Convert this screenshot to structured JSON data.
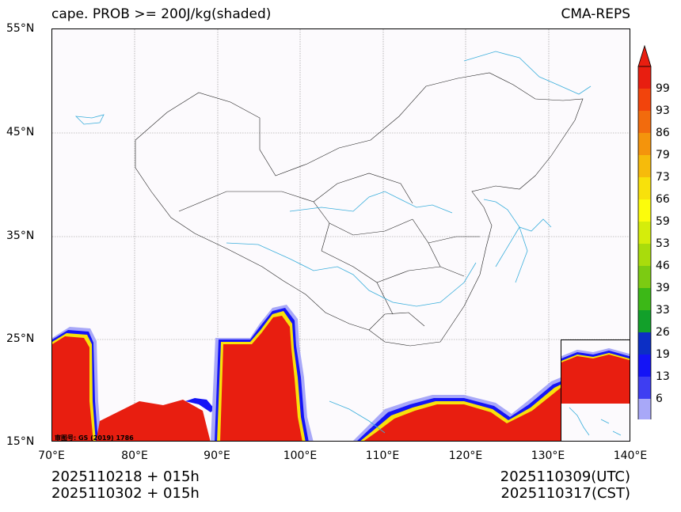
{
  "title_left": "cape. PROB >= 200J/kg(shaded)",
  "title_right": "CMA-REPS",
  "lat_labels": [
    "55°N",
    "45°N",
    "35°N",
    "25°N",
    "15°N"
  ],
  "lon_labels": [
    "70°E",
    "80°E",
    "90°E",
    "100°E",
    "110°E",
    "120°E",
    "130°E",
    "140°E"
  ],
  "colorbar": {
    "labels": [
      "99",
      "93",
      "86",
      "79",
      "73",
      "66",
      "59",
      "53",
      "46",
      "39",
      "33",
      "26",
      "19",
      "13",
      "6"
    ],
    "colors": [
      "#e81e10",
      "#f2440c",
      "#f26b0d",
      "#f4940c",
      "#f6bb0b",
      "#f8e10b",
      "#fcfc0c",
      "#d5ed0b",
      "#a9dc0c",
      "#7ccb12",
      "#3cb817",
      "#12a02a",
      "#0c2fc5",
      "#1414f6",
      "#3e3ef2",
      "#a8a8f8"
    ]
  },
  "footer_left": [
    "2025110218  +  015h",
    "2025110302  +  015h"
  ],
  "footer_right": [
    "2025110309(UTC)",
    "2025110317(CST)"
  ],
  "approval_number": "审图号: GS (2019) 1786"
}
